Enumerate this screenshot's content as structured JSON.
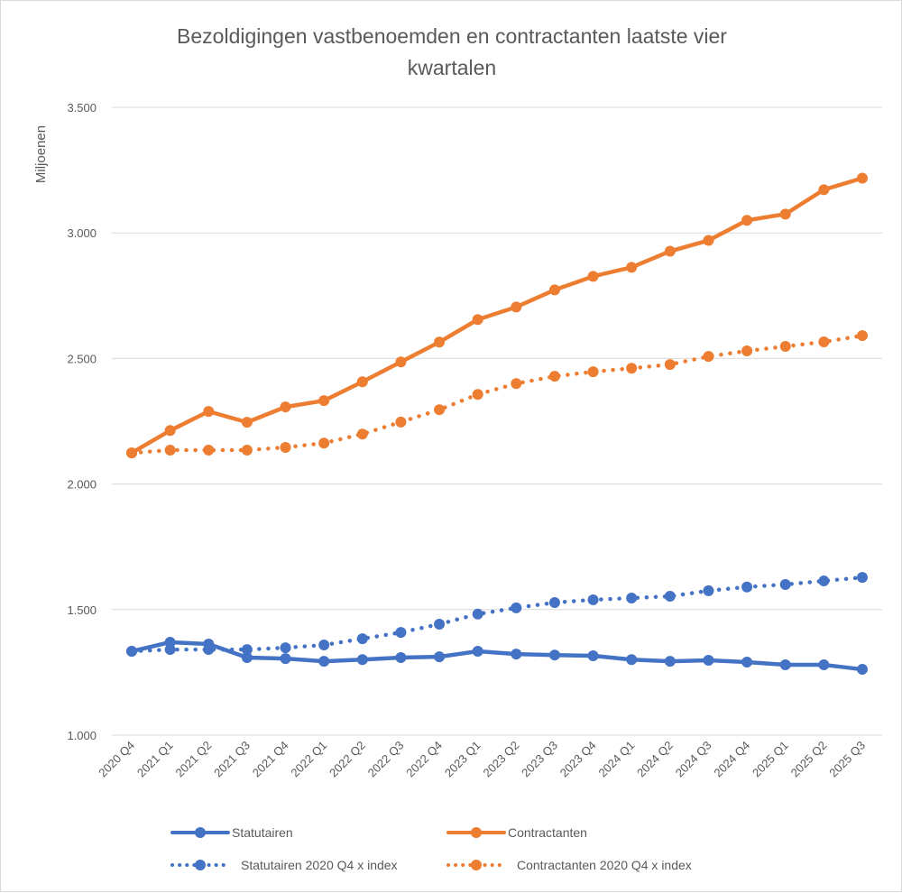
{
  "chart_data": {
    "type": "line",
    "title": "Bezoldigingen vastbenoemden en contractanten laatste vier kwartalen",
    "title_lines": [
      "Bezoldigingen vastbenoemden en contractanten laatste vier",
      "kwartalen"
    ],
    "xlabel": "",
    "ylabel": "Miljoenen",
    "ylim": [
      1000,
      3500
    ],
    "yticks": [
      1000,
      1500,
      2000,
      2500,
      3000,
      3500
    ],
    "ytick_labels": [
      "1.000",
      "1.500",
      "2.000",
      "2.500",
      "3.000",
      "3.500"
    ],
    "grid": true,
    "legend_position": "bottom",
    "categories": [
      "2020 Q4",
      "2021 Q1",
      "2021 Q2",
      "2021 Q3",
      "2021 Q4",
      "2022 Q1",
      "2022 Q2",
      "2022 Q3",
      "2022 Q4",
      "2023 Q1",
      "2023 Q2",
      "2023 Q3",
      "2023 Q4",
      "2024 Q1",
      "2024 Q2",
      "2024 Q3",
      "2024 Q4",
      "2025 Q1",
      "2025 Q2",
      "2025 Q3"
    ],
    "series": [
      {
        "name": "Statutairen",
        "color": "#4472c4",
        "style": "solid",
        "values": [
          1334,
          1370,
          1363,
          1309,
          1305,
          1294,
          1301,
          1309,
          1312,
          1334,
          1323,
          1319,
          1316,
          1301,
          1294,
          1298,
          1291,
          1280,
          1280,
          1262
        ]
      },
      {
        "name": "Contractanten",
        "color": "#ed7d31",
        "style": "solid",
        "values": [
          2124,
          2213,
          2289,
          2246,
          2307,
          2332,
          2407,
          2486,
          2565,
          2655,
          2705,
          2773,
          2827,
          2863,
          2927,
          2970,
          3050,
          3075,
          3172,
          3218
        ]
      },
      {
        "name": "Statutairen 2020 Q4 x index",
        "color": "#4472c4",
        "style": "dotted",
        "values": [
          1334,
          1341,
          1341,
          1341,
          1348,
          1359,
          1384,
          1409,
          1442,
          1482,
          1507,
          1528,
          1539,
          1546,
          1553,
          1575,
          1590,
          1600,
          1614,
          1628
        ]
      },
      {
        "name": "Contractanten 2020 Q4 x index",
        "color": "#ed7d31",
        "style": "dotted",
        "values": [
          2124,
          2135,
          2135,
          2135,
          2146,
          2163,
          2199,
          2247,
          2296,
          2357,
          2400,
          2429,
          2447,
          2461,
          2476,
          2508,
          2530,
          2548,
          2566,
          2591
        ]
      }
    ]
  }
}
